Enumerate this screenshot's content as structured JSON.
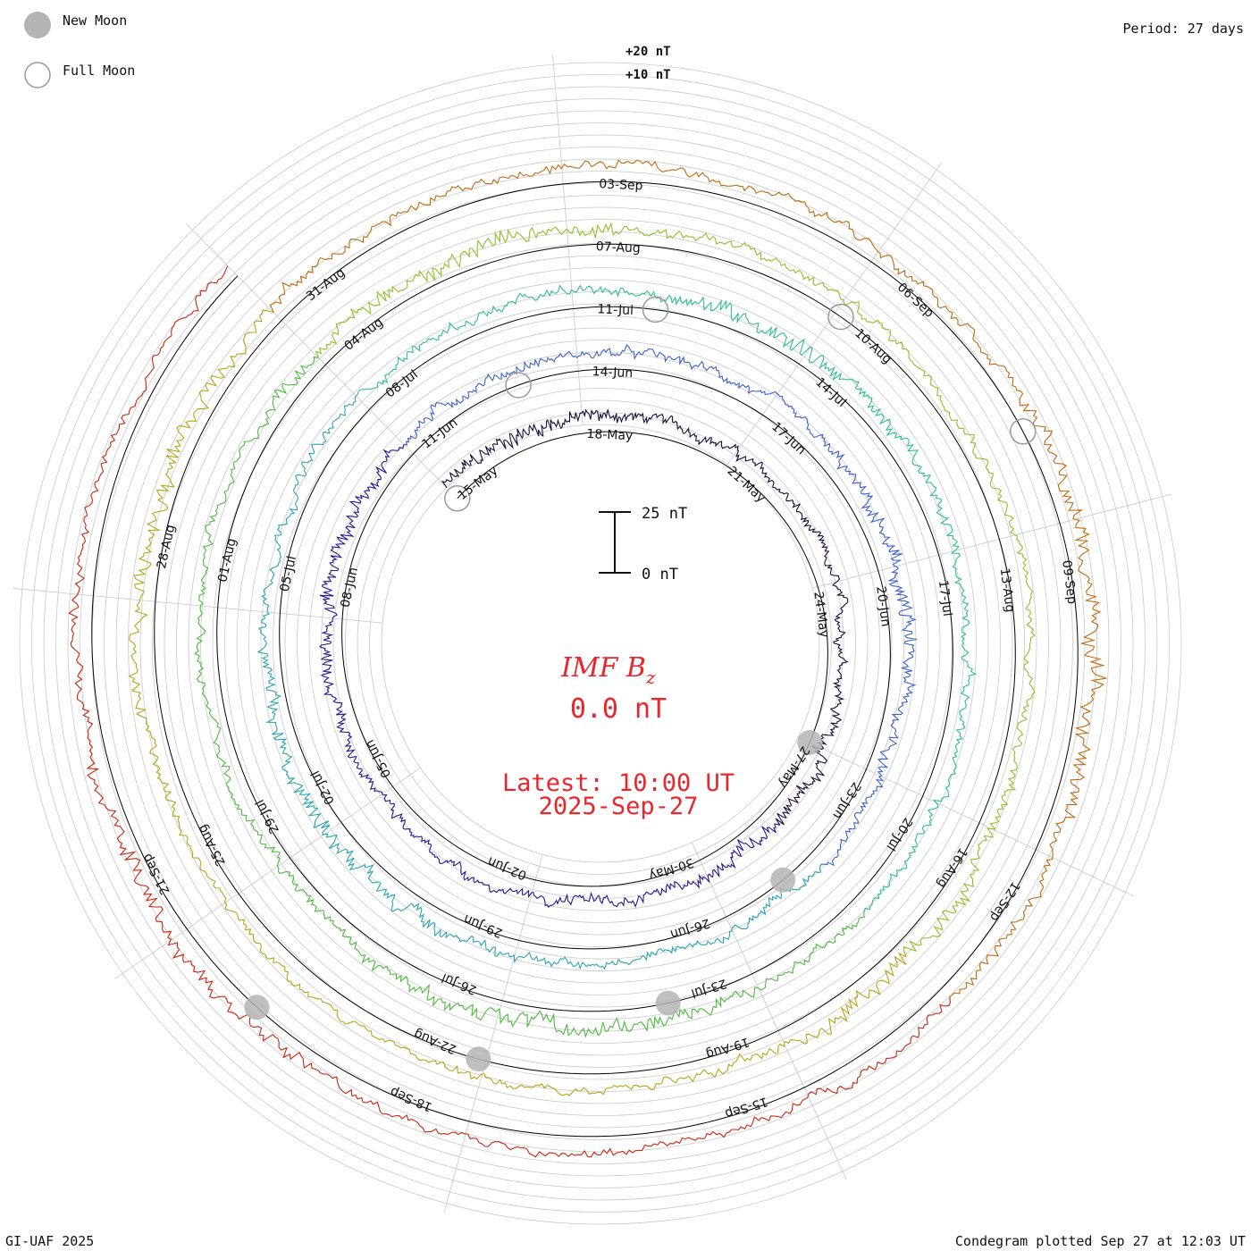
{
  "legend": {
    "new_moon_label": "New Moon",
    "full_moon_label": "Full Moon"
  },
  "period_label": "Period: 27 days",
  "credit": "GI-UAF 2025",
  "plotted_label": "Condegram plotted Sep 27 at 12:03 UT",
  "scale_bar": {
    "top_label": "25 nT",
    "bottom_label": "0 nT"
  },
  "reference_labels": {
    "plus20": "+20 nT",
    "plus10": "+10 nT"
  },
  "center": {
    "title_main": "IMF B",
    "title_sub": "z",
    "value": "0.0 nT",
    "latest_line1": "Latest: 10:00 UT",
    "latest_line2": "2025-Sep-27"
  },
  "colors": {
    "text_red": "#e8262b",
    "grid": "#c8c8c8",
    "moon_gray": "#b4b4b4",
    "ring_colors": [
      "#1c0b3e",
      "#28168f",
      "#3a62c8",
      "#2aa4b4",
      "#2fbf8c",
      "#4cbb3c",
      "#8fc02a",
      "#b8a418",
      "#c06a10",
      "#c8260c"
    ]
  },
  "chart_data": {
    "type": "condegram-spiral",
    "quantity": "IMF Bz",
    "units": "nT",
    "period_days": 27,
    "latest_value_nT": 0.0,
    "latest_time": "2025-Sep-27 10:00 UT",
    "scale_nT": [
      0,
      25
    ],
    "turns": [
      {
        "turn": 1,
        "dates": [
          "15-May",
          "18-May",
          "21-May",
          "24-May",
          "27-May",
          "30-May",
          "02-Jun",
          "05-Jun",
          "08-Jun"
        ]
      },
      {
        "turn": 2,
        "dates": [
          "11-Jun",
          "14-Jun",
          "17-Jun",
          "20-Jun",
          "23-Jun",
          "26-Jun",
          "29-Jun",
          "02-Jul",
          "05-Jul"
        ]
      },
      {
        "turn": 3,
        "dates": [
          "08-Jul",
          "11-Jul",
          "14-Jul",
          "17-Jul",
          "20-Jul",
          "23-Jul",
          "26-Jul",
          "29-Jul",
          "01-Aug"
        ]
      },
      {
        "turn": 4,
        "dates": [
          "04-Aug",
          "07-Aug",
          "10-Aug",
          "13-Aug",
          "16-Aug",
          "19-Aug",
          "22-Aug",
          "25-Aug",
          "28-Aug"
        ]
      },
      {
        "turn": 5,
        "dates": [
          "31-Aug",
          "03-Sep",
          "06-Sep",
          "09-Sep",
          "12-Sep",
          "15-Sep",
          "18-Sep",
          "21-Sep"
        ]
      }
    ],
    "new_moon_dates": [
      "2025-May-27",
      "2025-Jun-25",
      "2025-Jul-24",
      "2025-Aug-23",
      "2025-Sep-21"
    ],
    "full_moon_dates": [
      "2025-May-12",
      "2025-Jun-11",
      "2025-Jul-10",
      "2025-Aug-09",
      "2025-Sep-07"
    ]
  }
}
